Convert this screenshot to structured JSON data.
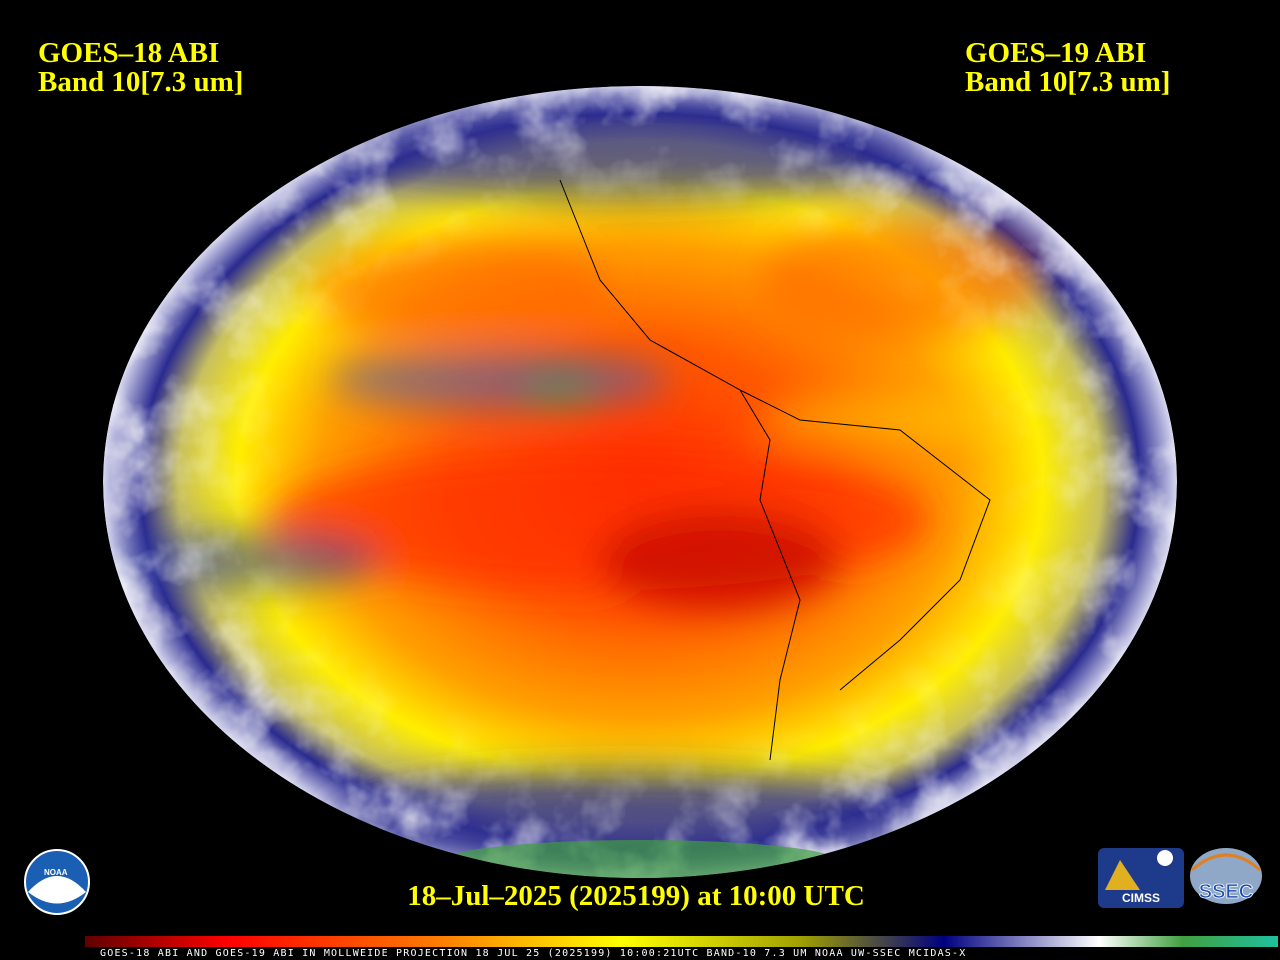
{
  "left_label": {
    "title": "GOES–18 ABI",
    "subtitle": "Band 10[7.3 um]"
  },
  "right_label": {
    "title": "GOES–19 ABI",
    "subtitle": "Band 10[7.3 um]"
  },
  "timestamp": "18–Jul–2025 (2025199) at 10:00 UTC",
  "footer": "GOES-18 ABI AND GOES-19 ABI IN MOLLWEIDE PROJECTION 18 JUL 25 (2025199) 10:00:21UTC BAND-10 7.3 UM NOAA UW-SSEC MCIDAS-X",
  "logos": {
    "noaa": "NOAA",
    "cimss": "CIMSS",
    "ssec": "SSEC"
  }
}
